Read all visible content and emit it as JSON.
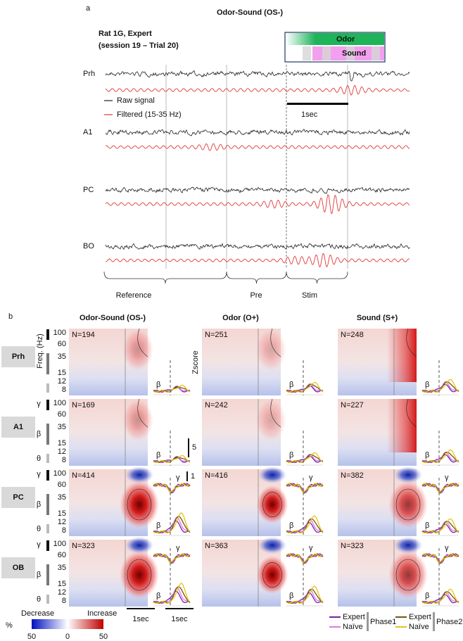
{
  "panel_a": {
    "letter": "a",
    "title": "Odor-Sound (OS-)",
    "subject": "Rat 1G, Expert",
    "session": "(session 19 – Trial 20)",
    "stimulus": {
      "odor": "Odor",
      "sound": "Sound"
    },
    "legend": {
      "raw": "Raw signal",
      "filtered": "Filtered (15-35 Hz)"
    },
    "scale": "1sec",
    "channels": [
      "Prh",
      "A1",
      "PC",
      "BO"
    ],
    "epochs": [
      "Reference",
      "Pre",
      "Stim"
    ]
  },
  "panel_b": {
    "letter": "b",
    "columns": [
      "Odor-Sound (OS-)",
      "Odor (O+)",
      "Sound (S+)"
    ],
    "rows": [
      {
        "label": "Prh",
        "n": [
          "N=194",
          "N=251",
          "N=248"
        ]
      },
      {
        "label": "A1",
        "n": [
          "N=169",
          "N=242",
          "N=227"
        ]
      },
      {
        "label": "PC",
        "n": [
          "N=414",
          "N=416",
          "N=382"
        ]
      },
      {
        "label": "OB",
        "n": [
          "N=323",
          "N=363",
          "N=323"
        ]
      }
    ],
    "freq_label": "Freq. (Hz)",
    "freq_ticks": [
      "100",
      "60",
      "35",
      "15",
      "12",
      "8"
    ],
    "bands": [
      "γ",
      "β",
      "θ"
    ],
    "inset_bands": [
      "β",
      "γ"
    ],
    "zscore_label": "Zscore",
    "zscore_scales": [
      "5",
      "1"
    ],
    "colorbar": {
      "decrease": "Decrease",
      "increase": "Increase",
      "unit": "%",
      "ticks": [
        "50",
        "0",
        "50"
      ]
    },
    "time_scales": [
      "1sec",
      "1sec"
    ],
    "legend": {
      "phase1": {
        "expert": "Expert",
        "naive": "Naïve",
        "label": "Phase1"
      },
      "phase2": {
        "expert": "Expert",
        "naive": "Naïve",
        "label": "Phase2"
      }
    }
  }
}
